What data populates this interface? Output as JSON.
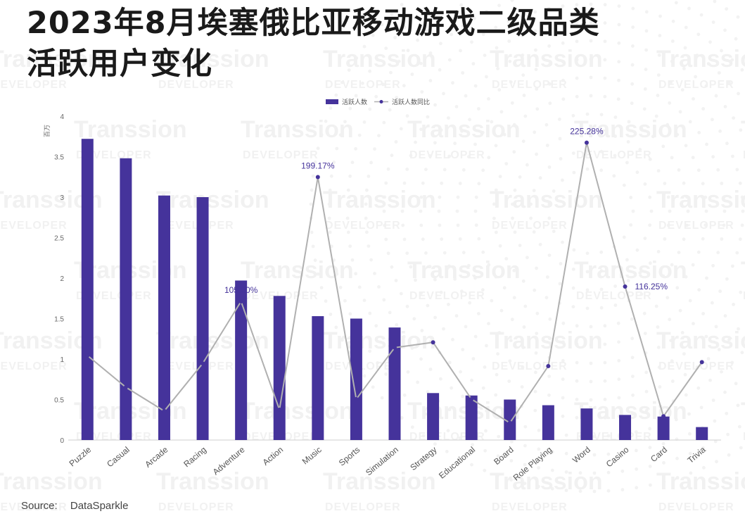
{
  "title_lines": [
    "2023年8月埃塞俄比亚移动游戏二级品类",
    "活跃用户变化"
  ],
  "watermark": {
    "line1": "Transsion",
    "line2": "DEVELOPER"
  },
  "source": {
    "label": "Source:",
    "value": "DataSparkle"
  },
  "colors": {
    "bar": "#45339b",
    "line": "#b0b0b0",
    "marker": "#45339b",
    "label": "#45339b"
  },
  "chart_data": {
    "type": "bar+line",
    "y_unit_label": "百万",
    "ylim": [
      0,
      4
    ],
    "y_ticks": [
      "0",
      "0.5",
      "1",
      "1.5",
      "2",
      "2.5",
      "3",
      "3.5",
      "4"
    ],
    "legend": [
      {
        "name": "活跃人数",
        "kind": "bar"
      },
      {
        "name": "活跃人数同比",
        "kind": "line"
      }
    ],
    "categories": [
      "Puzzle",
      "Casual",
      "Arcade",
      "Racing",
      "Adventure",
      "Action",
      "Music",
      "Sports",
      "Simulation",
      "Strategy",
      "Educational",
      "Board",
      "Role Playing",
      "Word",
      "Casino",
      "Card",
      "Trivia"
    ],
    "series": [
      {
        "name": "活跃人数",
        "kind": "bar",
        "axis": "left",
        "values": [
          3.72,
          3.48,
          3.02,
          3.0,
          1.97,
          1.78,
          1.53,
          1.5,
          1.39,
          0.58,
          0.55,
          0.5,
          0.43,
          0.39,
          0.31,
          0.29,
          0.16
        ]
      },
      {
        "name": "活跃人数同比",
        "kind": "line",
        "axis": "right (unlabeled, %)",
        "values": [
          64,
          40,
          22,
          58,
          105,
          23,
          199.17,
          31,
          70,
          74,
          31,
          13,
          56,
          225.28,
          116.25,
          18,
          59
        ]
      }
    ],
    "annotations": [
      {
        "category": "Adventure",
        "text": "105.00%"
      },
      {
        "category": "Music",
        "text": "199.17%"
      },
      {
        "category": "Word",
        "text": "225.28%"
      },
      {
        "category": "Casino",
        "text": "116.25%"
      }
    ]
  }
}
